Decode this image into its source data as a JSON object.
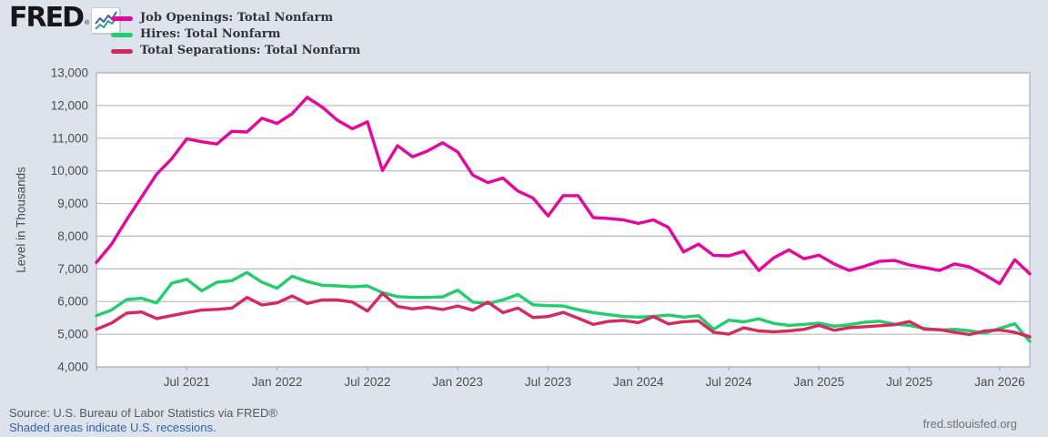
{
  "header": {
    "logo_text": "FRED",
    "logo_registered": "®",
    "legend": [
      {
        "label": "Job Openings: Total Nonfarm",
        "color": "#e4069f"
      },
      {
        "label": "Hires: Total Nonfarm",
        "color": "#22ce6b"
      },
      {
        "label": "Total Separations: Total Nonfarm",
        "color": "#d42a5e"
      }
    ]
  },
  "axis": {
    "y_title": "Level in Thousands"
  },
  "chart_data": {
    "type": "line",
    "title": "",
    "ylabel": "Level in Thousands",
    "xlabel": "",
    "grid": true,
    "legend_position": "top-left",
    "x_period": "monthly, 2021-01 through 2026-03",
    "ylim": [
      4000,
      13000
    ],
    "yticks": [
      {
        "value": 4000,
        "label": "4,000"
      },
      {
        "value": 5000,
        "label": "5,000"
      },
      {
        "value": 6000,
        "label": "6,000"
      },
      {
        "value": 7000,
        "label": "7,000"
      },
      {
        "value": 8000,
        "label": "8,000"
      },
      {
        "value": 9000,
        "label": "9,000"
      },
      {
        "value": 10000,
        "label": "10,000"
      },
      {
        "value": 11000,
        "label": "11,000"
      },
      {
        "value": 12000,
        "label": "12,000"
      },
      {
        "value": 13000,
        "label": "13,000"
      }
    ],
    "xticks": [
      {
        "index": 6,
        "label": "Jul 2021"
      },
      {
        "index": 12,
        "label": "Jan 2022"
      },
      {
        "index": 18,
        "label": "Jul 2022"
      },
      {
        "index": 24,
        "label": "Jan 2023"
      },
      {
        "index": 30,
        "label": "Jul 2023"
      },
      {
        "index": 36,
        "label": "Jan 2024"
      },
      {
        "index": 42,
        "label": "Jul 2024"
      },
      {
        "index": 48,
        "label": "Jan 2025"
      },
      {
        "index": 54,
        "label": "Jul 2025"
      },
      {
        "index": 60,
        "label": "Jan 2026"
      }
    ],
    "series": [
      {
        "name": "Job Openings: Total Nonfarm",
        "color": "#e4069f",
        "values": [
          7200,
          7750,
          8500,
          9200,
          9900,
          10370,
          10980,
          10890,
          10820,
          11210,
          11190,
          11610,
          11450,
          11750,
          12250,
          11950,
          11550,
          11290,
          11500,
          10010,
          10770,
          10430,
          10610,
          10860,
          10580,
          9870,
          9640,
          9780,
          9380,
          9170,
          8620,
          9240,
          9240,
          8570,
          8545,
          8500,
          8390,
          8500,
          8270,
          7520,
          7760,
          7410,
          7400,
          7540,
          6950,
          7340,
          7580,
          7310,
          7420,
          7150,
          6950,
          7080,
          7230,
          7260,
          7120,
          7040,
          6950,
          7150,
          7060,
          6820,
          6550,
          7280,
          6850
        ]
      },
      {
        "name": "Hires: Total Nonfarm",
        "color": "#22ce6b",
        "values": [
          5570,
          5740,
          6060,
          6100,
          5960,
          6560,
          6680,
          6330,
          6590,
          6640,
          6890,
          6590,
          6410,
          6775,
          6610,
          6500,
          6480,
          6450,
          6480,
          6270,
          6150,
          6125,
          6125,
          6145,
          6350,
          5985,
          5940,
          6050,
          6215,
          5900,
          5875,
          5865,
          5750,
          5660,
          5600,
          5545,
          5525,
          5545,
          5585,
          5525,
          5565,
          5150,
          5430,
          5380,
          5470,
          5330,
          5270,
          5300,
          5340,
          5245,
          5290,
          5365,
          5400,
          5310,
          5270,
          5180,
          5125,
          5150,
          5105,
          5030,
          5180,
          5320,
          4780
        ]
      },
      {
        "name": "Total Separations: Total Nonfarm",
        "color": "#d42a5e",
        "values": [
          5150,
          5340,
          5645,
          5680,
          5480,
          5570,
          5660,
          5740,
          5760,
          5800,
          6125,
          5895,
          5960,
          6170,
          5940,
          6050,
          6050,
          5985,
          5710,
          6250,
          5850,
          5775,
          5830,
          5755,
          5865,
          5735,
          5985,
          5660,
          5800,
          5510,
          5540,
          5670,
          5490,
          5300,
          5390,
          5420,
          5355,
          5540,
          5315,
          5385,
          5405,
          5060,
          5000,
          5195,
          5100,
          5075,
          5100,
          5150,
          5270,
          5120,
          5200,
          5230,
          5260,
          5290,
          5390,
          5150,
          5140,
          5060,
          4990,
          5100,
          5130,
          5060,
          4920
        ]
      }
    ]
  },
  "footer": {
    "source": "Source: U.S. Bureau of Labor Statistics via FRED®",
    "recessions_note": "Shaded areas indicate U.S. recessions.",
    "site": "fred.stlouisfed.org"
  }
}
